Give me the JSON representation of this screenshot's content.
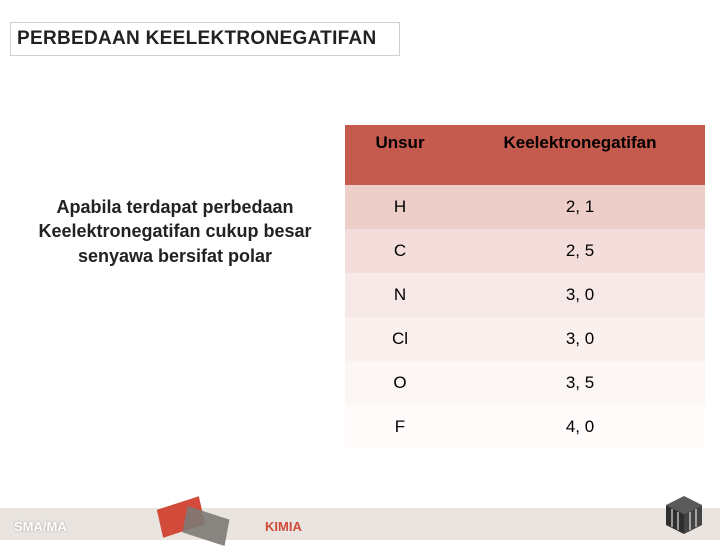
{
  "title": "PERBEDAAN KEELEKTRONEGATIFAN",
  "body_text": "Apabila terdapat perbedaan Keelektronegatifan cukup besar senyawa bersifat polar",
  "table": {
    "columns": [
      "Unsur",
      "Keelektronegatifan"
    ],
    "header_bg": "#c55a4e",
    "row_shades": [
      "#edcec9",
      "#f3dedb",
      "#f7e9e7",
      "#faf1ef",
      "#fcf6f5",
      "#fefbfa"
    ],
    "rows": [
      [
        "H",
        "2, 1"
      ],
      [
        "C",
        "2, 5"
      ],
      [
        "N",
        "3, 0"
      ],
      [
        "Cl",
        "3, 0"
      ],
      [
        "O",
        "3, 5"
      ],
      [
        "F",
        "4, 0"
      ]
    ]
  },
  "footer": {
    "left": "SMA/MA",
    "center": "KIMIA"
  },
  "colors": {
    "footer_bg": "#e9e4df",
    "accent_red": "#d24a3a",
    "cube_dark": "#3a3a3a"
  }
}
